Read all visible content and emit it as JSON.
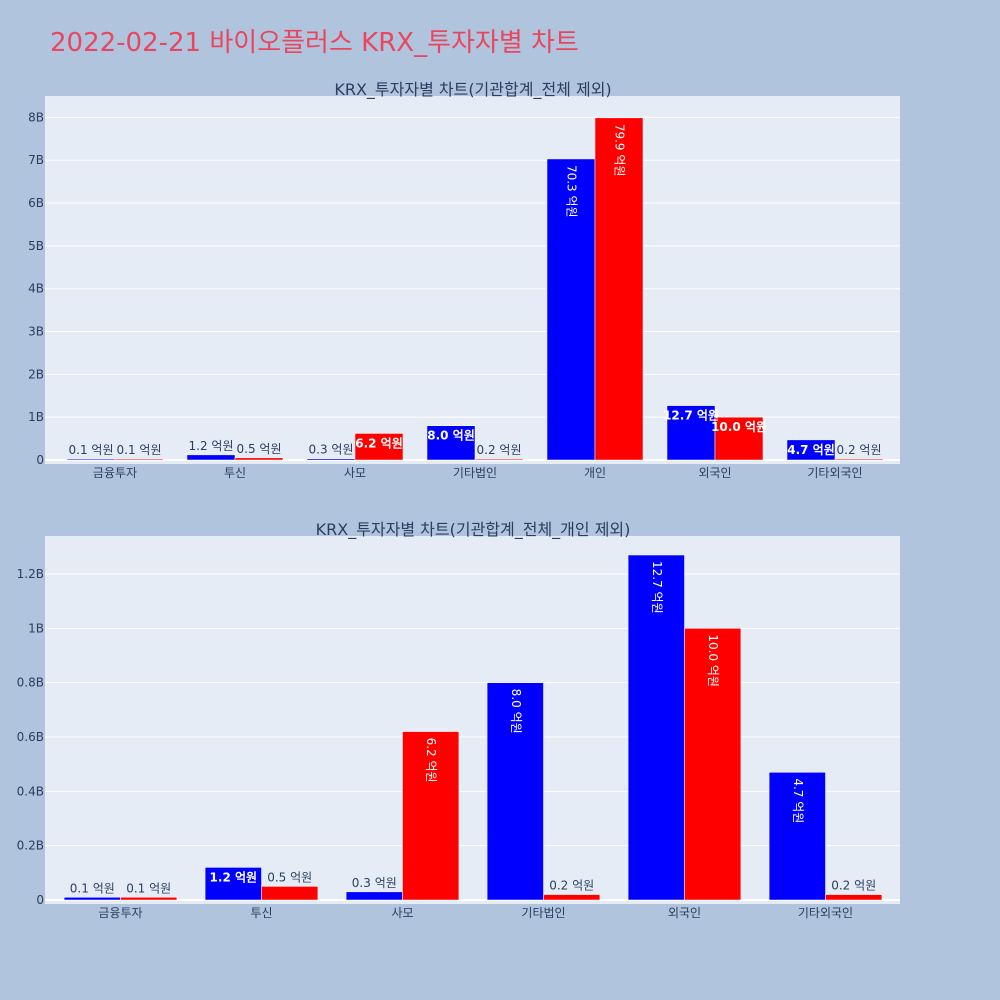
{
  "page": {
    "title": "2022-02-21 바이오플러스 KRX_투자자별 차트"
  },
  "colors": {
    "buy": "#0000ff",
    "sell": "#ff0000",
    "plot_bg": "#e5ecf6",
    "page_bg": "#b0c4de",
    "title": "#e8475f"
  },
  "chart_data": [
    {
      "type": "bar",
      "title": "KRX_투자자별 차트(기관합계_전체 제외)",
      "categories": [
        "금융투자",
        "투신",
        "사모",
        "기타법인",
        "개인",
        "외국인",
        "기타외국인"
      ],
      "series": [
        {
          "color": "#0000ff",
          "values": [
            10000000,
            120000000,
            30000000,
            800000000,
            7030000000,
            1270000000,
            470000000
          ],
          "labels": [
            "0.1 억원",
            "1.2 억원",
            "0.3 억원",
            "8.0 억원",
            "70.3 억원",
            "12.7 억원",
            "4.7 억원"
          ]
        },
        {
          "color": "#ff0000",
          "values": [
            10000000,
            50000000,
            620000000,
            20000000,
            7990000000,
            1000000000,
            20000000
          ],
          "labels": [
            "0.1 억원",
            "0.5 억원",
            "6.2 억원",
            "0.2 억원",
            "79.9 억원",
            "10.0 억원",
            "0.2 억원"
          ]
        }
      ],
      "ylim": [
        0,
        8500000000
      ],
      "yticks": [
        0,
        1000000000,
        2000000000,
        3000000000,
        4000000000,
        5000000000,
        6000000000,
        7000000000,
        8000000000
      ],
      "ytick_labels": [
        "0",
        "1B",
        "2B",
        "3B",
        "4B",
        "5B",
        "6B",
        "7B",
        "8B"
      ],
      "grid": true,
      "legend": "none"
    },
    {
      "type": "bar",
      "title": "KRX_투자자별 차트(기관합계_전체_개인 제외)",
      "categories": [
        "금융투자",
        "투신",
        "사모",
        "기타법인",
        "외국인",
        "기타외국인"
      ],
      "series": [
        {
          "color": "#0000ff",
          "values": [
            10000000,
            120000000,
            30000000,
            800000000,
            1270000000,
            470000000
          ],
          "labels": [
            "0.1 억원",
            "1.2 억원",
            "0.3 억원",
            "8.0 억원",
            "12.7 억원",
            "4.7 억원"
          ]
        },
        {
          "color": "#ff0000",
          "values": [
            10000000,
            50000000,
            620000000,
            20000000,
            1000000000,
            20000000
          ],
          "labels": [
            "0.1 억원",
            "0.5 억원",
            "6.2 억원",
            "0.2 억원",
            "10.0 억원",
            "0.2 억원"
          ]
        }
      ],
      "ylim": [
        0,
        1340000000
      ],
      "yticks": [
        0,
        200000000,
        400000000,
        600000000,
        800000000,
        1000000000,
        1200000000
      ],
      "ytick_labels": [
        "0",
        "0.2B",
        "0.4B",
        "0.6B",
        "0.8B",
        "1B",
        "1.2B"
      ],
      "grid": true,
      "legend": "none"
    }
  ]
}
